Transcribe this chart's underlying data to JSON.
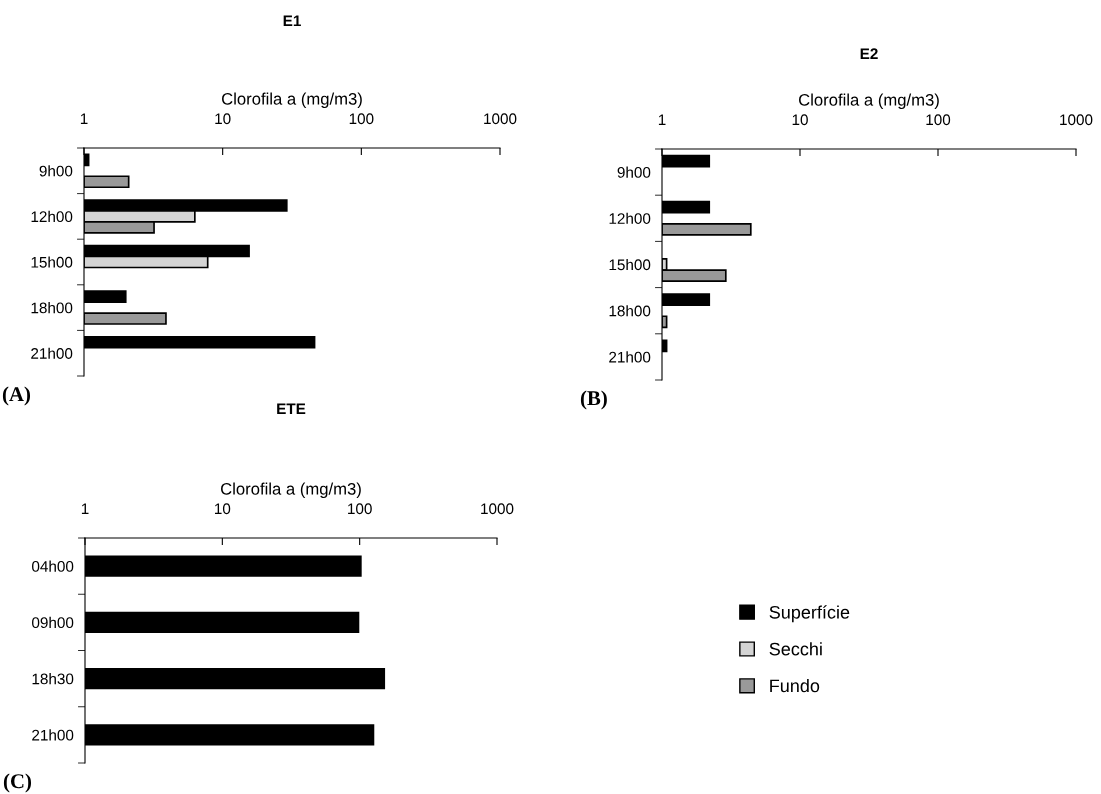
{
  "chart_data": [
    {
      "type": "bar",
      "orientation": "horizontal",
      "title": "E1",
      "xlabel": "Clorofila a (mg/m3)",
      "log": "x",
      "xlim": [
        1,
        1000
      ],
      "xticks": [
        1,
        10,
        100,
        1000
      ],
      "grid": false,
      "legend": false,
      "annotations": [
        "(A)"
      ],
      "categories": [
        "9h00",
        "12h00",
        "15h00",
        "18h00",
        "21h00"
      ],
      "series": [
        {
          "color": "#000000",
          "values": [
            1.08,
            29,
            15.5,
            2.0,
            46
          ]
        },
        {
          "color": "#d4d4d4",
          "values": [
            null,
            6.3,
            7.8,
            null,
            null
          ]
        },
        {
          "color": "#999999",
          "values": [
            2.1,
            3.2,
            null,
            3.9,
            null
          ]
        }
      ]
    },
    {
      "type": "bar",
      "orientation": "horizontal",
      "title": "E2",
      "xlabel": "Clorofila a (mg/m3)",
      "log": "x",
      "xlim": [
        1,
        1000
      ],
      "xticks": [
        1,
        10,
        100,
        1000
      ],
      "grid": false,
      "legend": false,
      "annotations": [
        "(B)"
      ],
      "categories": [
        "9h00",
        "12h00",
        "15h00",
        "18h00",
        "21h00"
      ],
      "series": [
        {
          "color": "#000000",
          "values": [
            2.2,
            2.2,
            null,
            2.2,
            1.08
          ]
        },
        {
          "color": "#d4d4d4",
          "values": [
            null,
            null,
            1.08,
            null,
            null
          ]
        },
        {
          "color": "#999999",
          "values": [
            null,
            4.4,
            2.9,
            1.08,
            null
          ]
        }
      ]
    },
    {
      "type": "bar",
      "orientation": "horizontal",
      "title": "ETE",
      "xlabel": "Clorofila a (mg/m3)",
      "log": "x",
      "xlim": [
        1,
        1000
      ],
      "xticks": [
        1,
        10,
        100,
        1000
      ],
      "grid": false,
      "legend": "right",
      "annotations": [
        "(C)"
      ],
      "categories": [
        "04h00",
        "09h00",
        "18h30",
        "21h00"
      ],
      "series": [
        {
          "name": "Superfície",
          "color": "#000000",
          "values": [
            102,
            98,
            151,
            126
          ]
        },
        {
          "name": "Secchi",
          "color": "#d4d4d4",
          "values": [
            null,
            null,
            null,
            null
          ]
        },
        {
          "name": "Fundo",
          "color": "#999999",
          "values": [
            null,
            null,
            null,
            null
          ]
        }
      ]
    }
  ]
}
